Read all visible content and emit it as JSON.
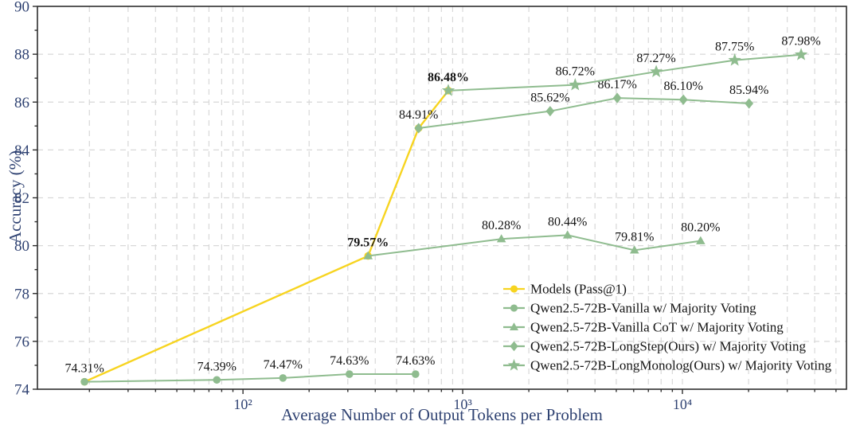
{
  "figure": {
    "colors": {
      "axis_text": "#2F4272",
      "grid": "#D8D8D8",
      "spine": "#2E2E2E",
      "point_label_text": "#141414",
      "legend_text": "#141414",
      "accent_yellow": "#F7D420",
      "accent_green": "#8FBC8F"
    }
  },
  "chart_data": {
    "type": "line",
    "title": "",
    "xlabel": "Average Number of Output Tokens per Problem",
    "ylabel": "Accuracy (%)",
    "x_scale": "log",
    "xlim": [
      11.6,
      55800
    ],
    "ylim": [
      74,
      90
    ],
    "y_ticks": [
      74,
      76,
      78,
      80,
      82,
      84,
      86,
      88,
      90
    ],
    "y_minor_ticks": [
      75,
      77,
      79,
      81,
      83,
      85,
      87,
      89
    ],
    "x_major_ticks": [
      100,
      1000,
      10000
    ],
    "x_major_tick_labels": [
      "10²",
      "10³",
      "10⁴"
    ],
    "grid": true,
    "legend_position": "lower right",
    "bold_point_labels": [
      "79.57%",
      "86.48%"
    ],
    "series": [
      {
        "name": "Models (Pass@1)",
        "color": "#F7D420",
        "marker": "circle",
        "x": [
          19,
          371,
          630,
          860
        ],
        "y": [
          74.31,
          79.57,
          84.91,
          86.48
        ],
        "point_labels": [
          "",
          "",
          "",
          ""
        ]
      },
      {
        "name": "Qwen2.5-72B-Vanilla w/ Majority Voting",
        "color": "#8FBC8F",
        "marker": "circle",
        "x": [
          19,
          76,
          152,
          305,
          610
        ],
        "y": [
          74.31,
          74.39,
          74.47,
          74.63,
          74.63
        ],
        "point_labels": [
          "74.31%",
          "74.39%",
          "74.47%",
          "74.63%",
          "74.63%"
        ]
      },
      {
        "name": "Qwen2.5-72B-Vanilla CoT w/ Majority Voting",
        "color": "#8FBC8F",
        "marker": "triangle",
        "x": [
          371,
          1500,
          3000,
          6050,
          12100
        ],
        "y": [
          79.57,
          80.28,
          80.44,
          79.81,
          80.2
        ],
        "point_labels": [
          "79.57%",
          "80.28%",
          "80.44%",
          "79.81%",
          "80.20%"
        ]
      },
      {
        "name": "Qwen2.5-72B-LongStep(Ours) w/ Majority Voting",
        "color": "#8FBC8F",
        "marker": "diamond",
        "x": [
          630,
          2500,
          5050,
          10100,
          20100
        ],
        "y": [
          84.91,
          85.62,
          86.17,
          86.1,
          85.94
        ],
        "point_labels": [
          "84.91%",
          "85.62%",
          "86.17%",
          "86.10%",
          "85.94%"
        ]
      },
      {
        "name": "Qwen2.5-72B-LongMonolog(Ours) w/ Majority Voting",
        "color": "#8FBC8F",
        "marker": "star",
        "x": [
          860,
          3250,
          7600,
          17300,
          34700
        ],
        "y": [
          86.48,
          86.72,
          87.27,
          87.75,
          87.98
        ],
        "point_labels": [
          "86.48%",
          "86.72%",
          "87.27%",
          "87.75%",
          "87.98%"
        ]
      }
    ]
  }
}
